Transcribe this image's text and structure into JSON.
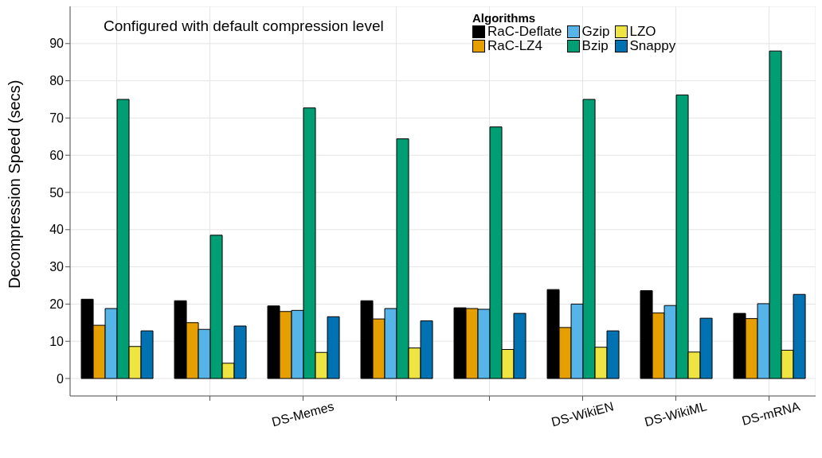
{
  "chart_data": {
    "type": "bar",
    "ylabel": "Decompression Speed (secs)",
    "legend_title": "Algorithms",
    "annotations": [
      "Configured with default compression level"
    ],
    "categories": [
      null,
      null,
      "DS-Memes",
      null,
      null,
      "DS-WikiEN",
      "DS-WikiML",
      "DS-mRNA"
    ],
    "series": [
      {
        "name": "RaC-Deflate",
        "color": "#000000",
        "values": [
          21.3,
          20.9,
          19.5,
          20.9,
          19,
          23.9,
          23.6,
          17.5
        ]
      },
      {
        "name": "RaC-LZ4",
        "color": "#e69f00",
        "values": [
          14.3,
          15,
          18,
          16,
          18.8,
          13.7,
          17.6,
          16.1
        ]
      },
      {
        "name": "Gzip",
        "color": "#56b4e9",
        "values": [
          18.8,
          13.2,
          18.3,
          18.8,
          18.6,
          20,
          19.6,
          20.1
        ]
      },
      {
        "name": "Bzip",
        "color": "#009e73",
        "values": [
          75,
          38.5,
          72.7,
          64.4,
          67.6,
          75,
          76.2,
          88
        ]
      },
      {
        "name": "LZO",
        "color": "#f0e442",
        "values": [
          8.6,
          4.1,
          7,
          8.2,
          7.8,
          8.4,
          7.1,
          7.6
        ]
      },
      {
        "name": "Snappy",
        "color": "#0072b2",
        "values": [
          12.8,
          14.1,
          16.6,
          15.5,
          17.5,
          12.8,
          16.2,
          22.6
        ]
      }
    ],
    "ylim": [
      -4.7,
      100
    ],
    "yticks": [
      0,
      10,
      20,
      30,
      40,
      50,
      60,
      70,
      80,
      90
    ],
    "grid": true,
    "legend": "top right"
  }
}
